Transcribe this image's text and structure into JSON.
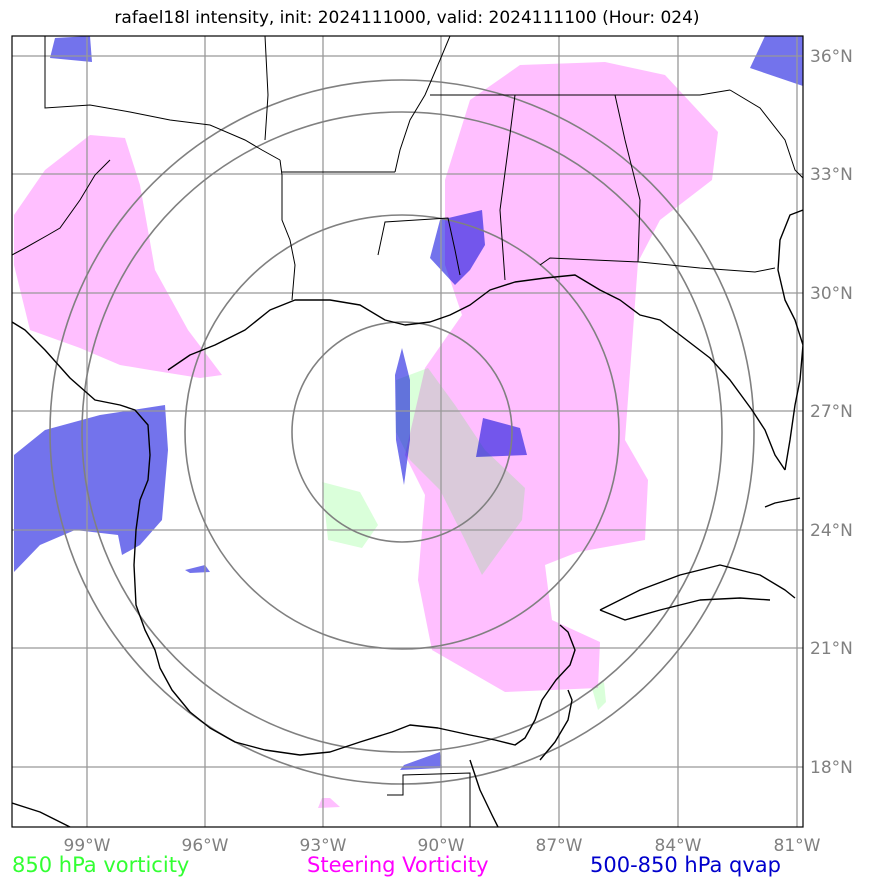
{
  "title": "rafael18l intensity, init: 2024111000, valid: 2024111100 (Hour: 024)",
  "map": {
    "lon_range": [
      -101,
      -81
    ],
    "lat_range": [
      16.5,
      36.5
    ],
    "lon_ticks": [
      {
        "value": -99,
        "label": "99°W"
      },
      {
        "value": -96,
        "label": "96°W"
      },
      {
        "value": -93,
        "label": "93°W"
      },
      {
        "value": -90,
        "label": "90°W"
      },
      {
        "value": -87,
        "label": "87°W"
      },
      {
        "value": -84,
        "label": "84°W"
      },
      {
        "value": -81,
        "label": "81°W"
      }
    ],
    "lat_ticks": [
      {
        "value": 18,
        "label": "18°N"
      },
      {
        "value": 21,
        "label": "21°N"
      },
      {
        "value": 24,
        "label": "24°N"
      },
      {
        "value": 27,
        "label": "27°N"
      },
      {
        "value": 30,
        "label": "30°N"
      },
      {
        "value": 33,
        "label": "33°N"
      },
      {
        "value": 36,
        "label": "36°N"
      }
    ],
    "range_rings": {
      "center_lon": -90.7,
      "center_lat": 26.3,
      "radii_deg": [
        2.8,
        5.5,
        8.2,
        11.0
      ]
    },
    "grid": true,
    "colors": {
      "vorticity_850": "#33ff33",
      "steering_vorticity": "#ff00ff",
      "qvap_500_850": "#0000cc",
      "grid": "#999999",
      "rings": "#808080",
      "coastline": "#000000"
    }
  },
  "legend": {
    "vorticity_850": "850 hPa vorticity",
    "steering_vorticity": "Steering Vorticity",
    "qvap_500_850": "500-850 hPa qvap"
  }
}
